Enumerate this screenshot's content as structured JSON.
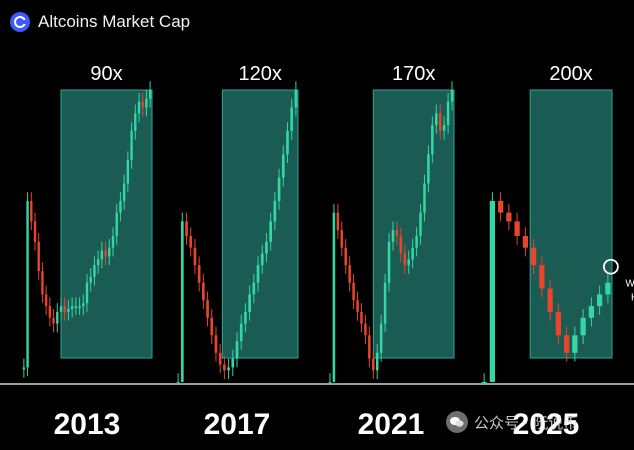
{
  "header": {
    "title": "Altcoins Market Cap",
    "logo_icon": "coin-logo-icon"
  },
  "colors": {
    "background": "#000000",
    "up": "#34d6a3",
    "down": "#e8452c",
    "highlight_box": "#1f6b62",
    "highlight_border": "#2fa597",
    "text": "#ffffff"
  },
  "chart_data": {
    "type": "candlestick",
    "title": "Altcoins Market Cap",
    "panels": [
      {
        "cycle": "2013",
        "multiplier": "90x",
        "highlight_range": [
          0.3,
          1.0
        ],
        "series": [
          0.05,
          0.62,
          0.55,
          0.48,
          0.38,
          0.3,
          0.26,
          0.22,
          0.2,
          0.24,
          0.26,
          0.24,
          0.25,
          0.26,
          0.26,
          0.26,
          0.27,
          0.34,
          0.36,
          0.4,
          0.42,
          0.45,
          0.43,
          0.46,
          0.5,
          0.58,
          0.62,
          0.68,
          0.76,
          0.86,
          0.92,
          0.96,
          0.94,
          0.97,
          1.0
        ],
        "annotation": ""
      },
      {
        "cycle": "2017",
        "multiplier": "120x",
        "highlight_range": [
          0.38,
          1.0
        ],
        "series": [
          0.0,
          0.55,
          0.5,
          0.46,
          0.4,
          0.34,
          0.28,
          0.22,
          0.16,
          0.1,
          0.06,
          0.04,
          0.05,
          0.08,
          0.14,
          0.2,
          0.24,
          0.3,
          0.34,
          0.4,
          0.44,
          0.48,
          0.55,
          0.62,
          0.7,
          0.78,
          0.86,
          0.94,
          1.0
        ],
        "annotation": ""
      },
      {
        "cycle": "2021",
        "multiplier": "170x",
        "highlight_range": [
          0.36,
          1.0
        ],
        "series": [
          0.0,
          0.58,
          0.52,
          0.46,
          0.4,
          0.34,
          0.28,
          0.24,
          0.2,
          0.16,
          0.08,
          0.04,
          0.1,
          0.2,
          0.34,
          0.48,
          0.52,
          0.5,
          0.44,
          0.4,
          0.42,
          0.46,
          0.5,
          0.58,
          0.68,
          0.78,
          0.88,
          0.92,
          0.86,
          0.88,
          0.96,
          1.0
        ],
        "annotation": ""
      },
      {
        "cycle": "2025",
        "multiplier": "200x",
        "highlight_range": [
          0.38,
          1.0
        ],
        "series": [
          0.0,
          0.62,
          0.58,
          0.55,
          0.5,
          0.46,
          0.4,
          0.32,
          0.24,
          0.16,
          0.1,
          0.16,
          0.22,
          0.26,
          0.3,
          0.34
        ],
        "annotation": "WE ARE HERE"
      }
    ]
  },
  "watermark": {
    "text": "公众号 · 阮说币"
  }
}
